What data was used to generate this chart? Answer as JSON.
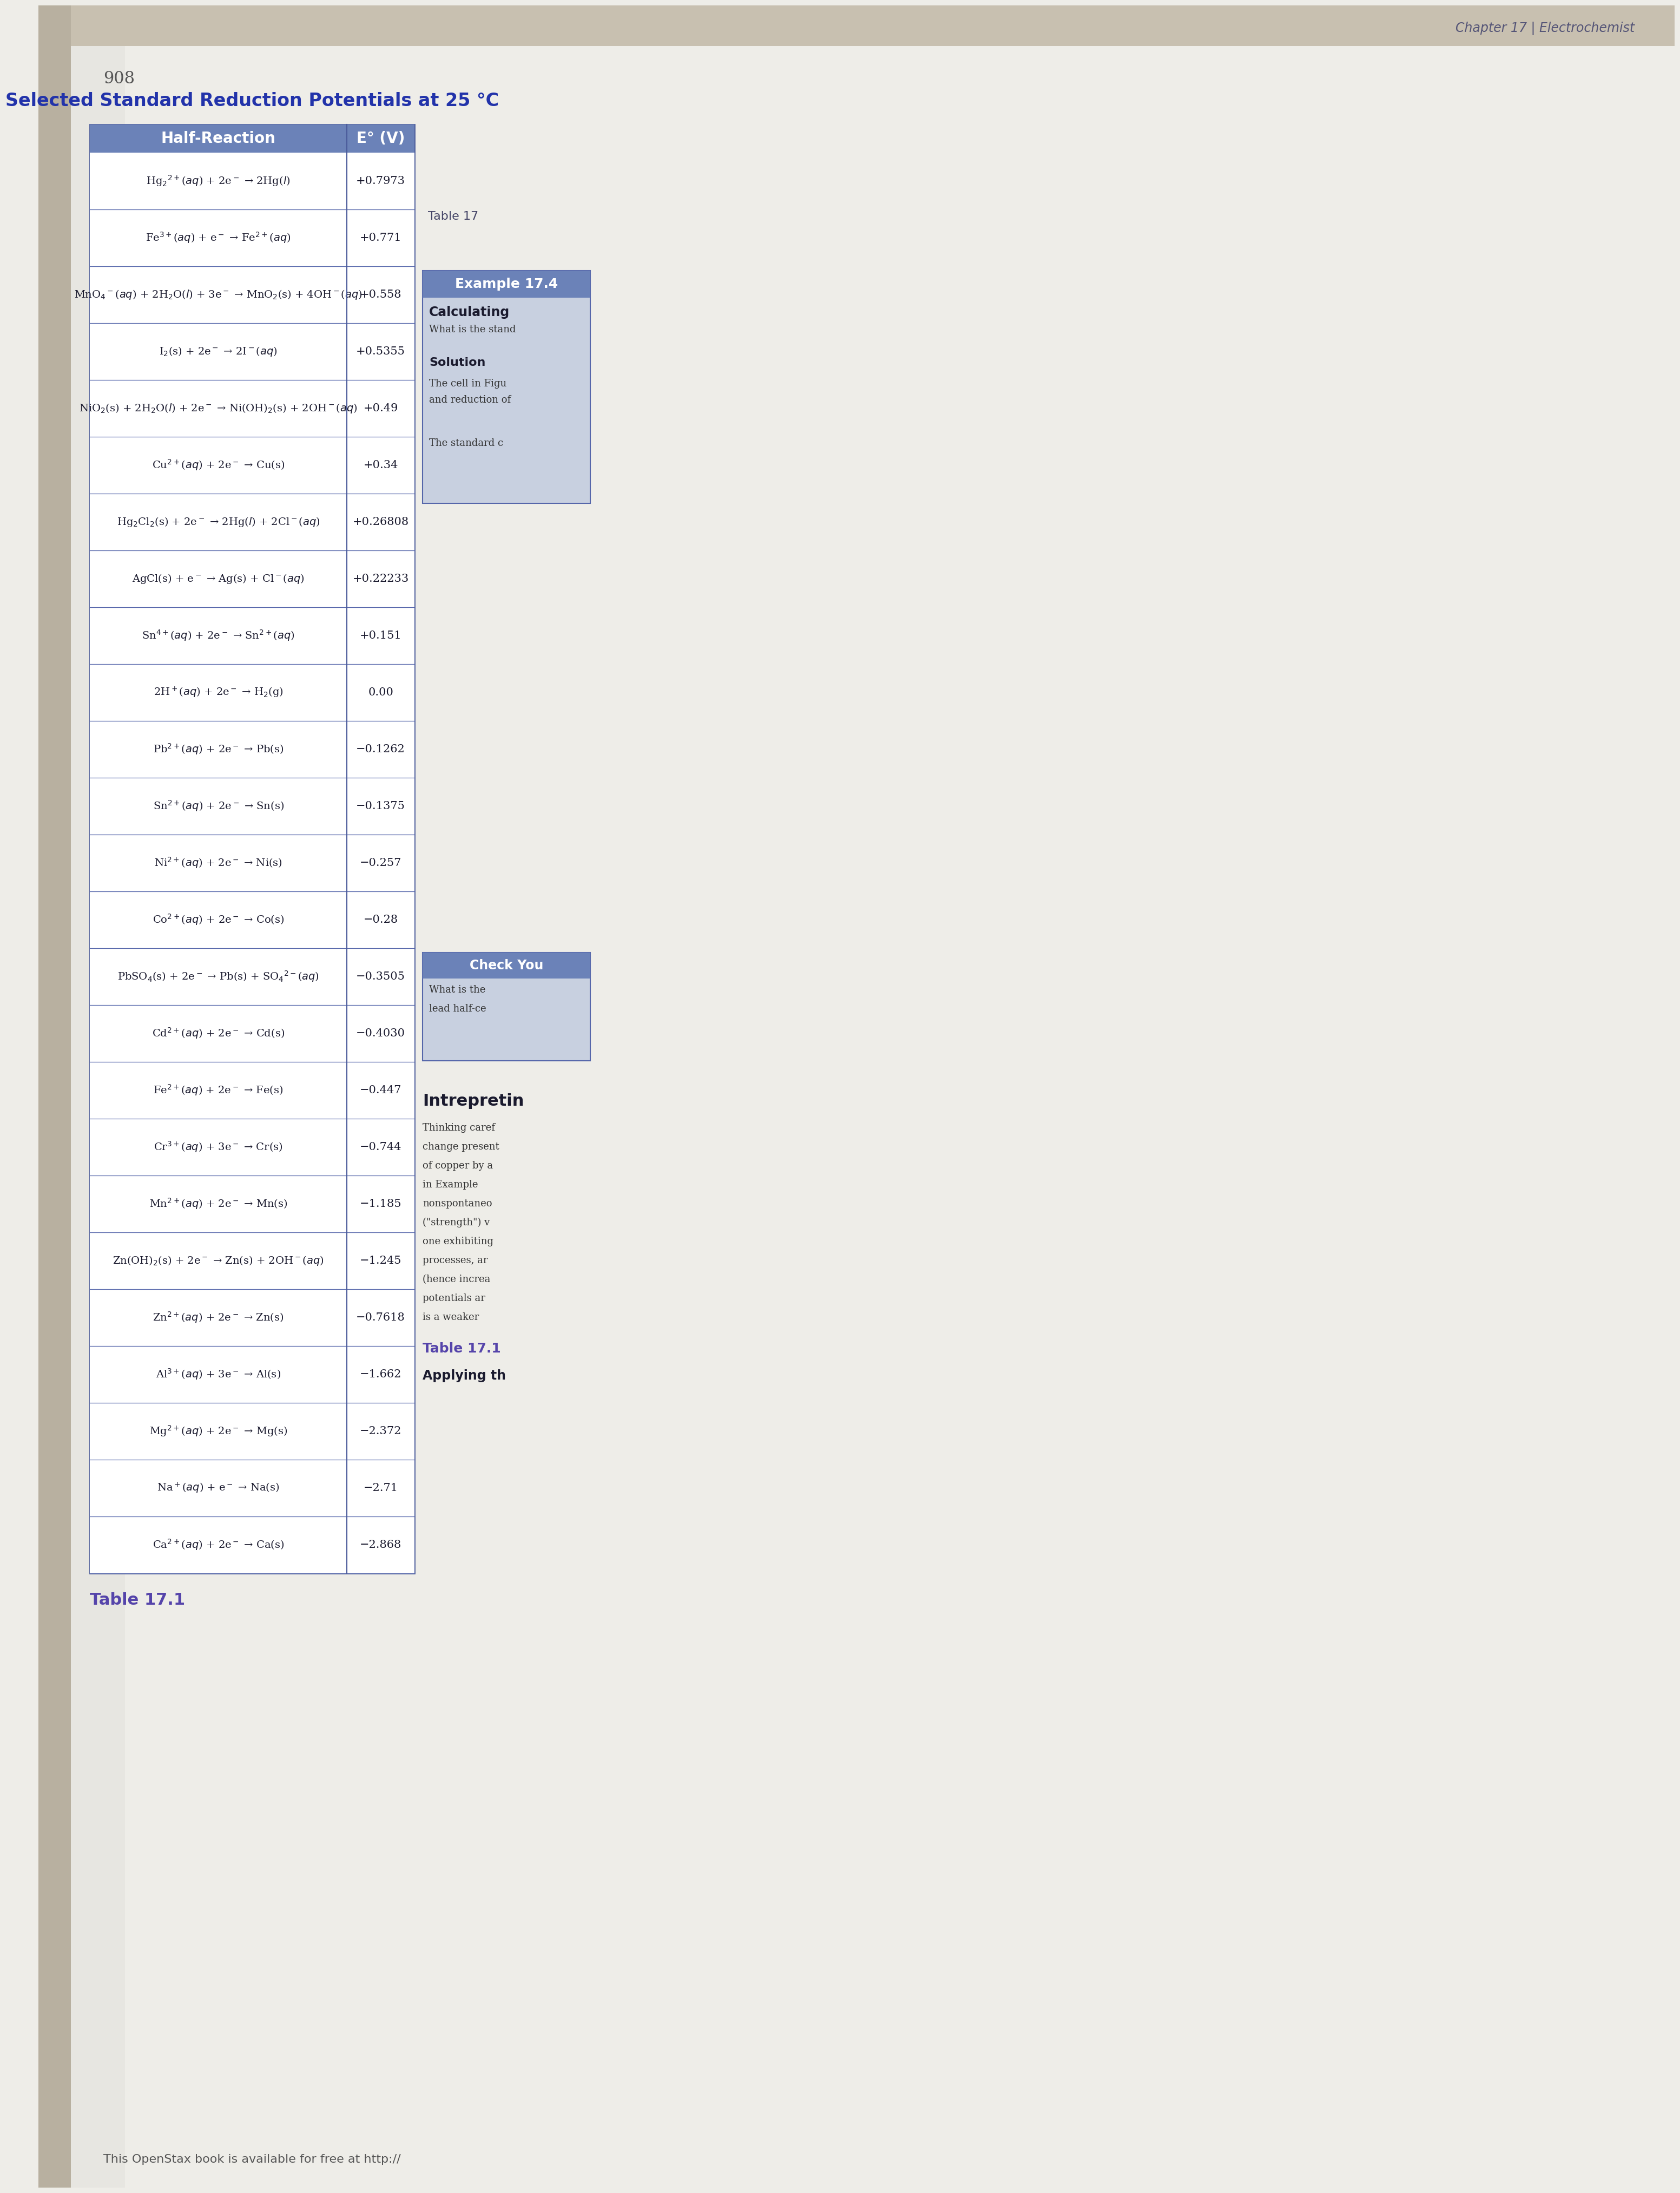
{
  "title": "Selected Standard Reduction Potentials at 25 °C",
  "col_headers": [
    "Half-Reaction",
    "E° (V)"
  ],
  "rows": [
    [
      "Hg$_2$$^{2+}$($aq$) + 2e$^-$ → 2Hg($l$)",
      "+0.7973"
    ],
    [
      "Fe$^{3+}$($aq$) + e$^-$ → Fe$^{2+}$($aq$)",
      "+0.771"
    ],
    [
      "MnO$_4$$^-$($aq$) + 2H$_2$O($l$) + 3e$^-$ → MnO$_2$(s) + 4OH$^-$($aq$)",
      "+0.558"
    ],
    [
      "I$_2$(s) + 2e$^-$ → 2I$^-$($aq$)",
      "+0.5355"
    ],
    [
      "NiO$_2$(s) + 2H$_2$O($l$) + 2e$^-$ → Ni(OH)$_2$(s) + 2OH$^-$($aq$)",
      "+0.49"
    ],
    [
      "Cu$^{2+}$($aq$) + 2e$^-$ → Cu(s)",
      "+0.34"
    ],
    [
      "Hg$_2$Cl$_2$(s) + 2e$^-$ → 2Hg($l$) + 2Cl$^-$($aq$)",
      "+0.26808"
    ],
    [
      "AgCl(s) + e$^-$ → Ag(s) + Cl$^-$($aq$)",
      "+0.22233"
    ],
    [
      "Sn$^{4+}$($aq$) + 2e$^-$ → Sn$^{2+}$($aq$)",
      "+0.151"
    ],
    [
      "2H$^+$($aq$) + 2e$^-$ → H$_2$(g)",
      "0.00"
    ],
    [
      "Pb$^{2+}$($aq$) + 2e$^-$ → Pb(s)",
      "−0.1262"
    ],
    [
      "Sn$^{2+}$($aq$) + 2e$^-$ → Sn(s)",
      "−0.1375"
    ],
    [
      "Ni$^{2+}$($aq$) + 2e$^-$ → Ni(s)",
      "−0.257"
    ],
    [
      "Co$^{2+}$($aq$) + 2e$^-$ → Co(s)",
      "−0.28"
    ],
    [
      "PbSO$_4$(s) + 2e$^-$ → Pb(s) + SO$_4$$^{2-}$($aq$)",
      "−0.3505"
    ],
    [
      "Cd$^{2+}$($aq$) + 2e$^-$ → Cd(s)",
      "−0.4030"
    ],
    [
      "Fe$^{2+}$($aq$) + 2e$^-$ → Fe(s)",
      "−0.447"
    ],
    [
      "Cr$^{3+}$($aq$) + 3e$^-$ → Cr(s)",
      "−0.744"
    ],
    [
      "Mn$^{2+}$($aq$) + 2e$^-$ → Mn(s)",
      "−1.185"
    ],
    [
      "Zn(OH)$_2$(s) + 2e$^-$ → Zn(s) + 2OH$^-$($aq$)",
      "−1.245"
    ],
    [
      "Zn$^{2+}$($aq$) + 2e$^-$ → Zn(s)",
      "−0.7618"
    ],
    [
      "Al$^{3+}$($aq$) + 3e$^-$ → Al(s)",
      "−1.662"
    ],
    [
      "Mg$^{2+}$($aq$) + 2e$^-$ → Mg(s)",
      "−2.372"
    ],
    [
      "Na$^+$($aq$) + e$^-$ → Na(s)",
      "−2.71"
    ],
    [
      "Ca$^{2+}$($aq$) + 2e$^-$ → Ca(s)",
      "−2.868"
    ]
  ],
  "header_bg": "#6b82b8",
  "header_text_color": "#ffffff",
  "row_line_color": "#5566aa",
  "border_color": "#4a5a9a",
  "row_bg_white": "#ffffff",
  "row_bg_light": "#f0f0f5",
  "table_label": "Table 17.1",
  "page_number": "908",
  "page_bg": "#eeede8",
  "spine_bg": "#b8b0a0",
  "top_shadow": "#c8c0b0",
  "text_color": "#1a1a2e",
  "footnote": "This OpenStax book is available for free at http://",
  "chapter_header": "Chapter 17 | Electrochemist",
  "right_sidebar_bg": "#c8d0e0",
  "right_sidebar_border": "#5566aa"
}
